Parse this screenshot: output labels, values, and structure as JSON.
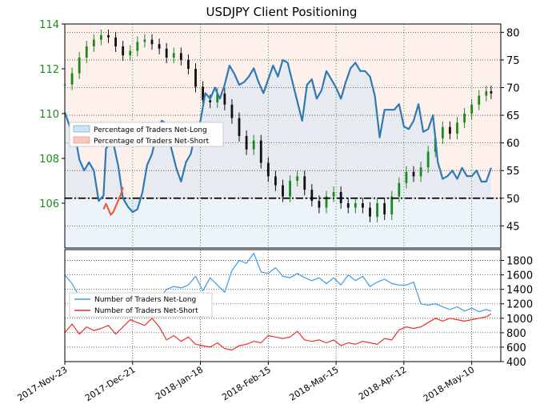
{
  "chart_data": [
    {
      "type": "line",
      "title": "USDJPY Client Positioning",
      "price_axis": {
        "ticks": [
          "106",
          "108",
          "110",
          "112",
          "114"
        ],
        "range": [
          104.0,
          114.0
        ]
      },
      "percent_axis": {
        "ticks": [
          "45",
          "50",
          "55",
          "60",
          "65",
          "70",
          "75",
          "80"
        ],
        "range": [
          41.0,
          81.5
        ]
      },
      "x_ticks": [
        "2017-Nov-23",
        "2017-Dec-21",
        "2018-Jan-18",
        "2018-Feb-15",
        "2018-Mar-15",
        "2018-Apr-12",
        "2018-May-10"
      ],
      "reference_line": 50,
      "legend": [
        "Percentage of Traders Net-Long",
        "Percentage of Traders Net-Short"
      ],
      "grid": true,
      "series": [
        {
          "name": "Percentage of Traders Net-Long",
          "color": "#2e7bb4",
          "x": [
            0,
            2,
            4,
            6,
            8,
            10,
            12,
            14,
            16,
            17,
            18,
            20,
            22,
            24,
            26,
            28,
            30,
            32,
            34,
            36,
            38,
            40,
            42,
            44,
            46,
            48,
            50,
            52,
            54,
            56,
            58,
            60,
            62,
            64,
            66,
            68,
            70,
            72,
            74,
            76,
            78,
            80,
            82,
            84,
            86,
            88,
            90,
            92,
            94,
            96,
            98,
            100,
            102,
            104,
            106,
            108,
            110,
            112,
            114,
            116,
            118,
            120,
            122,
            124,
            126,
            128,
            130,
            132,
            134,
            136,
            138,
            140,
            142,
            144,
            146,
            148,
            150,
            152,
            154,
            156,
            158,
            160,
            162,
            164,
            166,
            168,
            170,
            172,
            174,
            176
          ],
          "y": [
            65.5,
            63.0,
            62.0,
            57.0,
            55.0,
            56.5,
            55.0,
            49.5,
            50.5,
            59.0,
            59.5,
            60.0,
            56.0,
            50.0,
            48.5,
            47.5,
            48.0,
            51.0,
            56.0,
            58.0,
            62.0,
            64.0,
            63.5,
            59.0,
            55.5,
            53.0,
            56.5,
            58.0,
            62.0,
            64.0,
            69.0,
            68.0,
            70.0,
            68.0,
            70.5,
            74.0,
            72.5,
            70.5,
            71.0,
            72.0,
            73.5,
            71.0,
            69.0,
            71.5,
            74.0,
            72.0,
            75.0,
            74.5,
            71.0,
            67.5,
            64.0,
            70.5,
            71.5,
            68.0,
            69.5,
            73.0,
            71.5,
            70.0,
            68.0,
            71.0,
            73.5,
            74.5,
            73.0,
            73.0,
            72.0,
            68.5,
            61.0,
            66.0,
            66.0,
            66.0,
            67.0,
            63.0,
            62.5,
            64.0,
            67.0,
            62.0,
            62.5,
            65.0,
            56.5,
            53.5,
            54.0,
            55.0,
            53.5,
            55.5,
            54.0,
            54.0,
            55.0,
            53.0,
            53.0,
            55.5
          ]
        },
        {
          "name": "Percentage of Traders Net-Short",
          "color": "#e8603a",
          "x": [
            16,
            17,
            18,
            19,
            20,
            21,
            22,
            23,
            24
          ],
          "y": [
            48.0,
            49.0,
            48.0,
            47.0,
            47.5,
            48.5,
            49.5,
            50.5,
            52.0
          ]
        }
      ]
    },
    {
      "type": "line",
      "axis": {
        "ticks": [
          "400",
          "600",
          "800",
          "1000",
          "1200",
          "1400",
          "1600",
          "1800"
        ],
        "range": [
          400,
          1950
        ]
      },
      "legend": [
        "Number of Traders Net-Long",
        "Number of Traders Net-Short"
      ],
      "grid": true,
      "series": [
        {
          "name": "Number of Traders Net-Long",
          "color": "#3f9be8",
          "x": [
            0,
            3,
            6,
            9,
            12,
            15,
            18,
            21,
            24,
            27,
            30,
            33,
            36,
            39,
            42,
            45,
            48,
            51,
            54,
            57,
            60,
            63,
            66,
            69,
            72,
            75,
            78,
            81,
            84,
            87,
            90,
            93,
            96,
            99,
            102,
            105,
            108,
            111,
            114,
            117,
            120,
            123,
            126,
            129,
            132,
            135,
            138,
            141,
            144,
            147,
            150,
            153,
            156,
            159,
            162,
            165,
            168,
            171,
            174,
            176
          ],
          "y": [
            1600,
            1480,
            1300,
            1180,
            1080,
            1040,
            1100,
            1040,
            1160,
            1080,
            1080,
            1050,
            1100,
            1280,
            1400,
            1440,
            1420,
            1460,
            1580,
            1380,
            1560,
            1460,
            1360,
            1660,
            1800,
            1760,
            1900,
            1640,
            1620,
            1700,
            1580,
            1560,
            1620,
            1560,
            1520,
            1560,
            1480,
            1560,
            1460,
            1600,
            1520,
            1580,
            1440,
            1500,
            1540,
            1480,
            1460,
            1460,
            1500,
            1200,
            1180,
            1200,
            1160,
            1120,
            1160,
            1100,
            1140,
            1090,
            1120,
            1100
          ]
        },
        {
          "name": "Number of Traders Net-Short",
          "color": "#e8322a",
          "x": [
            0,
            3,
            6,
            9,
            12,
            15,
            18,
            21,
            24,
            27,
            30,
            33,
            36,
            39,
            42,
            45,
            48,
            51,
            54,
            57,
            60,
            63,
            66,
            69,
            72,
            75,
            78,
            81,
            84,
            87,
            90,
            93,
            96,
            99,
            102,
            105,
            108,
            111,
            114,
            117,
            120,
            123,
            126,
            129,
            132,
            135,
            138,
            141,
            144,
            147,
            150,
            153,
            156,
            159,
            162,
            165,
            168,
            171,
            174,
            176
          ],
          "y": [
            800,
            920,
            780,
            880,
            830,
            860,
            900,
            780,
            880,
            980,
            940,
            900,
            1000,
            880,
            700,
            760,
            680,
            740,
            640,
            620,
            600,
            660,
            580,
            560,
            620,
            640,
            680,
            660,
            760,
            740,
            720,
            740,
            820,
            700,
            680,
            700,
            660,
            700,
            620,
            660,
            640,
            680,
            660,
            640,
            720,
            700,
            840,
            880,
            860,
            880,
            940,
            1000,
            960,
            1000,
            980,
            960,
            980,
            1000,
            1020,
            1060
          ]
        }
      ]
    }
  ]
}
